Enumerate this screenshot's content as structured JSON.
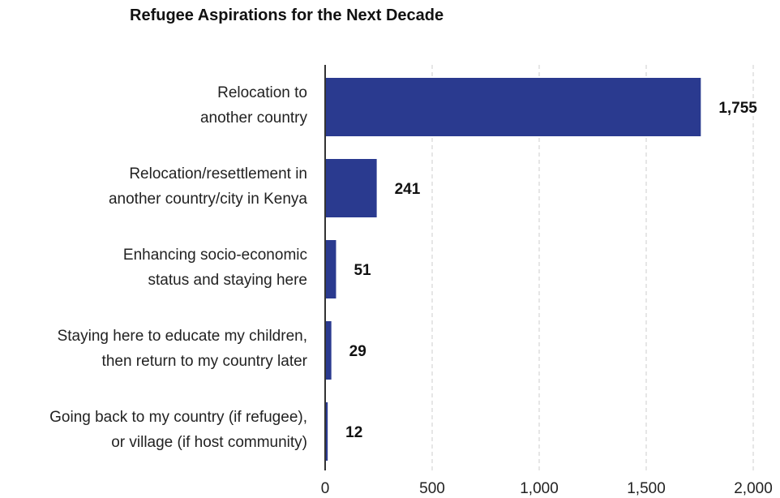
{
  "chart_data": {
    "type": "bar",
    "orientation": "horizontal",
    "title": "Refugee Aspirations for the Next Decade",
    "categories": [
      [
        "Relocation to",
        "another country"
      ],
      [
        "Relocation/resettlement in",
        "another country/city in Kenya"
      ],
      [
        "Enhancing socio-economic",
        "status and staying here"
      ],
      [
        "Staying here to educate my children,",
        "then return to my country later"
      ],
      [
        "Going back to my country (if refugee),",
        "or village (if host community)"
      ]
    ],
    "values": [
      1755,
      241,
      51,
      29,
      12
    ],
    "value_labels": [
      "1,755",
      "241",
      "51",
      "29",
      "12"
    ],
    "xlim": [
      0,
      2000
    ],
    "xticks": [
      0,
      500,
      1000,
      1500,
      2000
    ],
    "xtick_labels": [
      "0",
      "500",
      "1,000",
      "1,500",
      "2,000"
    ],
    "xlabel": "",
    "ylabel": "",
    "grid": "vertical dashed",
    "bar_color": "#2a3a8f",
    "grid_color": "#cccccc",
    "axis_color": "#333333"
  }
}
